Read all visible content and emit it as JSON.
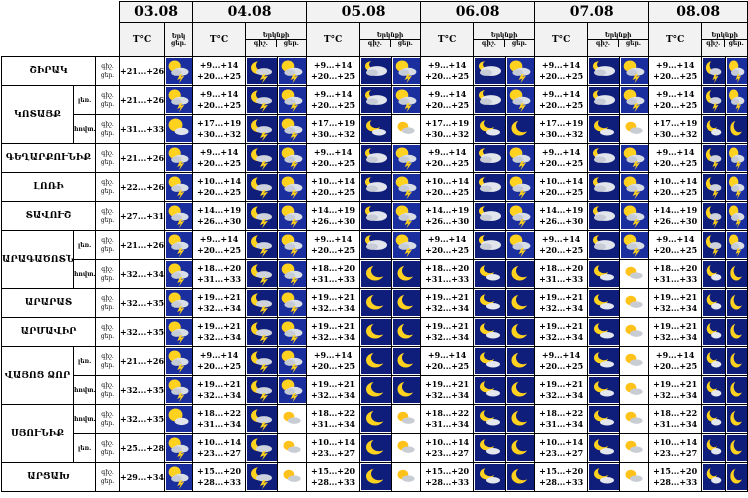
{
  "dates": [
    "03.08",
    "04.08",
    "05.08",
    "06.08",
    "07.08",
    "08.08"
  ],
  "header": {
    "tc": "T°C",
    "cloud_label": "Երկնքի",
    "cloud_label_first": "Երկ",
    "day_label": "ցեր.",
    "night_label": "գիշ."
  },
  "rows": [
    {
      "region": "ՇԻՐԱԿ",
      "sub": "",
      "first": true,
      "span": 1,
      "t1": "+21...+26",
      "d1": "sun-cloud-storm",
      "days": [
        {
          "n": "+9...+14",
          "d": "+20...+25",
          "in": "moon-storm",
          "id": "sun-cloud-storm"
        },
        {
          "n": "+9...+14",
          "d": "+20...+25",
          "in": "moon-cloud-storm",
          "id": "sun-cloud-storm"
        },
        {
          "n": "+9...+14",
          "d": "+20...+25",
          "in": "moon-cloud-storm",
          "id": "sun-cloud-storm"
        },
        {
          "n": "+9...+14",
          "d": "+20...+25",
          "in": "moon-cloud-storm",
          "id": "sun-cloud-storm"
        },
        {
          "n": "+9...+14",
          "d": "+20...+25",
          "in": "moon-storm",
          "id": "sun-cloud-storm"
        }
      ]
    },
    {
      "region": "ԿՈՏԱՅՔ",
      "sub": "լեռ.",
      "first": true,
      "span": 2,
      "t1": "+21...+26",
      "d1": "sun-cloud-storm",
      "days": [
        {
          "n": "+9...+14",
          "d": "+20...+25",
          "in": "moon-storm",
          "id": "sun-cloud-storm"
        },
        {
          "n": "+9...+14",
          "d": "+20...+25",
          "in": "moon-cloud-storm",
          "id": "sun-cloud-storm"
        },
        {
          "n": "+9...+14",
          "d": "+20...+25",
          "in": "moon-cloud-storm",
          "id": "sun-cloud-storm"
        },
        {
          "n": "+9...+14",
          "d": "+20...+25",
          "in": "moon-cloud-storm",
          "id": "sun-cloud-storm"
        },
        {
          "n": "+9...+14",
          "d": "+20...+25",
          "in": "moon-storm",
          "id": "sun-cloud-storm"
        }
      ]
    },
    {
      "region": "",
      "sub": "հովտ.",
      "first": false,
      "span": 0,
      "t1": "+31...+33",
      "d1": "sun-cloud",
      "days": [
        {
          "n": "+17...+19",
          "d": "+30...+32",
          "in": "moon-storm",
          "id": "sun-cloud-storm"
        },
        {
          "n": "+17...+19",
          "d": "+30...+32",
          "in": "moon-cloud",
          "id": "sun-cloud-small"
        },
        {
          "n": "+17...+19",
          "d": "+30...+32",
          "in": "moon-cloud",
          "id": "moon-clear"
        },
        {
          "n": "+17...+19",
          "d": "+30...+32",
          "in": "moon-cloud",
          "id": "sun-cloud-small"
        },
        {
          "n": "+17...+19",
          "d": "+30...+32",
          "in": "moon-cloud",
          "id": "moon-clear"
        }
      ]
    },
    {
      "region": "ԳԵՂԱՐՔՈՒՆԻՔ",
      "sub": "",
      "first": true,
      "span": 1,
      "t1": "+21...+26",
      "d1": "sun-cloud-storm",
      "days": [
        {
          "n": "+9...+14",
          "d": "+20...+25",
          "in": "moon-storm",
          "id": "sun-cloud-storm"
        },
        {
          "n": "+9...+14",
          "d": "+20...+25",
          "in": "moon-cloud-storm",
          "id": "sun-cloud-storm"
        },
        {
          "n": "+9...+14",
          "d": "+20...+25",
          "in": "moon-cloud-storm",
          "id": "sun-cloud-storm"
        },
        {
          "n": "+9...+14",
          "d": "+20...+25",
          "in": "moon-cloud-storm",
          "id": "sun-cloud-storm"
        },
        {
          "n": "+9...+14",
          "d": "+20...+25",
          "in": "moon-storm",
          "id": "sun-cloud-storm"
        }
      ]
    },
    {
      "region": "ԼՈՌԻ",
      "sub": "",
      "first": true,
      "span": 1,
      "t1": "+22...+26",
      "d1": "sun-cloud-storm",
      "days": [
        {
          "n": "+10...+14",
          "d": "+20...+25",
          "in": "moon-storm",
          "id": "sun-cloud-storm"
        },
        {
          "n": "+10...+14",
          "d": "+20...+25",
          "in": "moon-cloud-storm",
          "id": "sun-cloud-storm"
        },
        {
          "n": "+10...+14",
          "d": "+20...+25",
          "in": "moon-cloud-storm",
          "id": "sun-cloud-storm"
        },
        {
          "n": "+10...+14",
          "d": "+20...+25",
          "in": "moon-cloud-storm",
          "id": "sun-cloud-storm"
        },
        {
          "n": "+10...+14",
          "d": "+20...+25",
          "in": "moon-storm",
          "id": "sun-cloud-storm"
        }
      ]
    },
    {
      "region": "ՏԱՎՈՒՇ",
      "sub": "",
      "first": true,
      "span": 1,
      "t1": "+27...+31",
      "d1": "sun-cloud-storm",
      "days": [
        {
          "n": "+14...+19",
          "d": "+26...+30",
          "in": "moon-storm",
          "id": "sun-cloud-storm"
        },
        {
          "n": "+14...+19",
          "d": "+26...+30",
          "in": "moon-cloud-storm",
          "id": "sun-cloud-storm"
        },
        {
          "n": "+14...+19",
          "d": "+26...+30",
          "in": "moon-cloud-storm",
          "id": "sun-cloud-storm"
        },
        {
          "n": "+14...+19",
          "d": "+26...+30",
          "in": "moon-cloud-storm",
          "id": "sun-cloud-storm"
        },
        {
          "n": "+14...+19",
          "d": "+26...+30",
          "in": "moon-storm",
          "id": "sun-cloud-storm"
        }
      ]
    },
    {
      "region": "ԱՐԱԳԱԾՈՏՆ",
      "sub": "լեռ.",
      "first": true,
      "span": 2,
      "t1": "+21...+26",
      "d1": "sun-cloud-storm",
      "days": [
        {
          "n": "+9...+14",
          "d": "+20...+25",
          "in": "moon-storm",
          "id": "sun-cloud-storm"
        },
        {
          "n": "+9...+14",
          "d": "+20...+25",
          "in": "moon-cloud-storm",
          "id": "sun-cloud-storm"
        },
        {
          "n": "+9...+14",
          "d": "+20...+25",
          "in": "moon-cloud-storm",
          "id": "sun-cloud-storm"
        },
        {
          "n": "+9...+14",
          "d": "+20...+25",
          "in": "moon-cloud-storm",
          "id": "sun-cloud-storm"
        },
        {
          "n": "+9...+14",
          "d": "+20...+25",
          "in": "moon-storm",
          "id": "sun-cloud-storm"
        }
      ]
    },
    {
      "region": "",
      "sub": "հովտ.",
      "first": false,
      "span": 0,
      "t1": "+32...+34",
      "d1": "sun-cloud-storm",
      "days": [
        {
          "n": "+18...+20",
          "d": "+31...+33",
          "in": "moon-storm",
          "id": "sun-cloud-storm"
        },
        {
          "n": "+18...+20",
          "d": "+31...+33",
          "in": "moon-clear",
          "id": "moon-clear"
        },
        {
          "n": "+18...+20",
          "d": "+31...+33",
          "in": "moon-cloud",
          "id": "moon-clear"
        },
        {
          "n": "+18...+20",
          "d": "+31...+33",
          "in": "moon-cloud",
          "id": "sun-cloud-small"
        },
        {
          "n": "+18...+20",
          "d": "+31...+33",
          "in": "moon-cloud",
          "id": "moon-clear"
        }
      ]
    },
    {
      "region": "ԱՐԱՐԱՏ",
      "sub": "",
      "first": true,
      "span": 1,
      "t1": "+32...+35",
      "d1": "sun-cloud-storm",
      "days": [
        {
          "n": "+19...+21",
          "d": "+32...+34",
          "in": "moon-storm",
          "id": "sun-cloud-storm"
        },
        {
          "n": "+19...+21",
          "d": "+32...+34",
          "in": "moon-clear",
          "id": "moon-clear"
        },
        {
          "n": "+19...+21",
          "d": "+32...+34",
          "in": "moon-cloud",
          "id": "moon-clear"
        },
        {
          "n": "+19...+21",
          "d": "+32...+34",
          "in": "moon-cloud",
          "id": "sun-cloud-small"
        },
        {
          "n": "+19...+21",
          "d": "+32...+34",
          "in": "moon-cloud",
          "id": "moon-clear"
        }
      ]
    },
    {
      "region": "ԱՐՄԱՎԻՐ",
      "sub": "",
      "first": true,
      "span": 1,
      "t1": "+32...+35",
      "d1": "sun-cloud-storm",
      "days": [
        {
          "n": "+19...+21",
          "d": "+32...+34",
          "in": "moon-storm",
          "id": "sun-cloud-storm"
        },
        {
          "n": "+19...+21",
          "d": "+32...+34",
          "in": "moon-clear",
          "id": "moon-clear"
        },
        {
          "n": "+19...+21",
          "d": "+32...+34",
          "in": "moon-cloud",
          "id": "moon-clear"
        },
        {
          "n": "+19...+21",
          "d": "+32...+34",
          "in": "moon-cloud",
          "id": "sun-cloud-small"
        },
        {
          "n": "+19...+21",
          "d": "+32...+34",
          "in": "moon-cloud",
          "id": "moon-clear"
        }
      ]
    },
    {
      "region": "ՎԱՅՈՑ ՁՈՐ",
      "sub": "լեռ.",
      "first": true,
      "span": 2,
      "t1": "+21...+26",
      "d1": "sun-cloud-storm",
      "days": [
        {
          "n": "+9...+14",
          "d": "+20...+25",
          "in": "moon-storm",
          "id": "sun-cloud-storm"
        },
        {
          "n": "+9...+14",
          "d": "+20...+25",
          "in": "moon-clear",
          "id": "moon-clear"
        },
        {
          "n": "+9...+14",
          "d": "+20...+25",
          "in": "moon-cloud",
          "id": "moon-clear"
        },
        {
          "n": "+9...+14",
          "d": "+20...+25",
          "in": "moon-cloud",
          "id": "sun-cloud-small"
        },
        {
          "n": "+9...+14",
          "d": "+20...+25",
          "in": "moon-cloud",
          "id": "moon-clear"
        }
      ]
    },
    {
      "region": "",
      "sub": "հովտ.",
      "first": false,
      "span": 0,
      "t1": "+32...+35",
      "d1": "sun-cloud-storm",
      "days": [
        {
          "n": "+19...+21",
          "d": "+32...+34",
          "in": "moon-storm",
          "id": "sun-cloud-storm"
        },
        {
          "n": "+19...+21",
          "d": "+32...+34",
          "in": "moon-clear",
          "id": "moon-clear"
        },
        {
          "n": "+19...+21",
          "d": "+32...+34",
          "in": "moon-cloud",
          "id": "moon-clear"
        },
        {
          "n": "+19...+21",
          "d": "+32...+34",
          "in": "moon-cloud",
          "id": "sun-cloud-small"
        },
        {
          "n": "+19...+21",
          "d": "+32...+34",
          "in": "moon-cloud",
          "id": "moon-clear"
        }
      ]
    },
    {
      "region": "ՍՅՈՒՆԻՔ",
      "sub": "հովտ.",
      "first": true,
      "span": 2,
      "t1": "+32...+35",
      "d1": "sun-cloud",
      "days": [
        {
          "n": "+18...+22",
          "d": "+31...+34",
          "in": "moon-storm",
          "id": "sun-cloud-small"
        },
        {
          "n": "+18...+22",
          "d": "+31...+34",
          "in": "moon-clear",
          "id": "sun-cloud-small"
        },
        {
          "n": "+18...+22",
          "d": "+31...+34",
          "in": "moon-cloud",
          "id": "moon-clear"
        },
        {
          "n": "+18...+22",
          "d": "+31...+34",
          "in": "moon-cloud",
          "id": "sun-cloud-small"
        },
        {
          "n": "+18...+22",
          "d": "+31...+34",
          "in": "moon-cloud",
          "id": "moon-clear"
        }
      ]
    },
    {
      "region": "",
      "sub": "լեռ.",
      "first": false,
      "span": 0,
      "t1": "+25...+28",
      "d1": "sun-cloud-storm",
      "days": [
        {
          "n": "+10...+14",
          "d": "+23...+27",
          "in": "moon-storm",
          "id": "sun-cloud-small"
        },
        {
          "n": "+10...+14",
          "d": "+23...+27",
          "in": "moon-clear",
          "id": "sun-cloud-small"
        },
        {
          "n": "+10...+14",
          "d": "+23...+27",
          "in": "moon-cloud",
          "id": "moon-clear"
        },
        {
          "n": "+10...+14",
          "d": "+23...+27",
          "in": "moon-cloud",
          "id": "sun-cloud-small"
        },
        {
          "n": "+10...+14",
          "d": "+23...+27",
          "in": "moon-cloud",
          "id": "moon-clear"
        }
      ]
    },
    {
      "region": "ԱՐՑԱԽ",
      "sub": "",
      "first": true,
      "span": 1,
      "t1": "+29...+34",
      "d1": "sun-cloud-storm",
      "days": [
        {
          "n": "+15...+20",
          "d": "+28...+33",
          "in": "moon-storm",
          "id": "sun-cloud-small"
        },
        {
          "n": "+15...+20",
          "d": "+28...+33",
          "in": "moon-clear",
          "id": "sun-cloud-small"
        },
        {
          "n": "+15...+20",
          "d": "+28...+33",
          "in": "moon-cloud",
          "id": "moon-clear"
        },
        {
          "n": "+15...+20",
          "d": "+28...+33",
          "in": "moon-cloud",
          "id": "sun-cloud-small"
        },
        {
          "n": "+15...+20",
          "d": "+28...+33",
          "in": "moon-cloud",
          "id": "moon-clear"
        }
      ]
    }
  ]
}
